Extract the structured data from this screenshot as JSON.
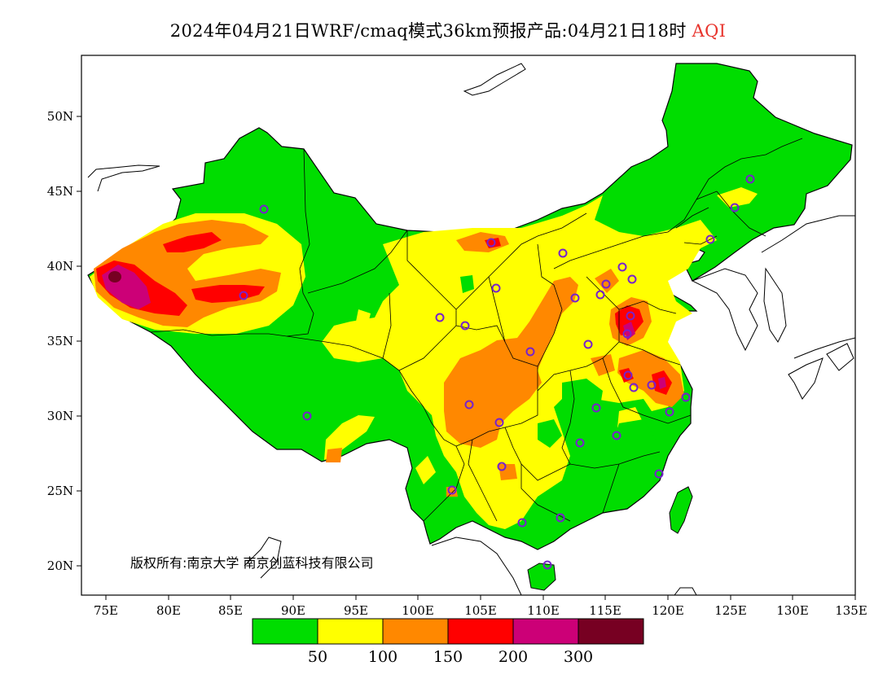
{
  "title": {
    "main": "2024年04月21日WRF/cmaq模式36km预报产品:04月21日18时",
    "variable": "AQI"
  },
  "axes": {
    "lon_labels": [
      "75E",
      "80E",
      "85E",
      "90E",
      "95E",
      "100E",
      "105E",
      "110E",
      "115E",
      "120E",
      "125E",
      "130E",
      "135E"
    ],
    "lat_labels": [
      "50N",
      "45N",
      "40N",
      "35N",
      "30N",
      "25N",
      "20N"
    ]
  },
  "copyright": "版权所有:南京大学 南京创蓝科技有限公司",
  "colorbar": {
    "colors": [
      "#00dd00",
      "#ffff00",
      "#ff8800",
      "#ff0000",
      "#cc0077",
      "#770022"
    ],
    "labels": [
      "50",
      "100",
      "150",
      "200",
      "300"
    ]
  }
}
